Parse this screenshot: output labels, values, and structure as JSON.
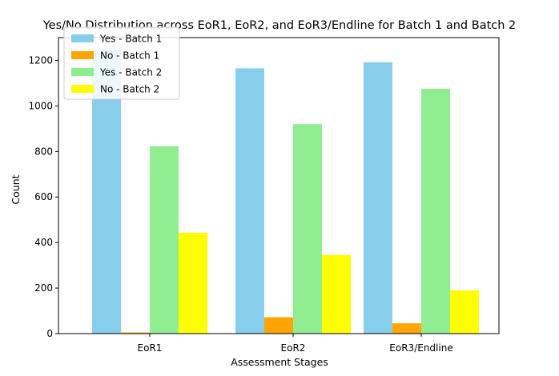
{
  "chart_data": {
    "type": "bar",
    "title": "Yes/No Distribution across EoR1, EoR2, and EoR3/Endline for Batch 1 and Batch 2",
    "xlabel": "Assessment Stages",
    "ylabel": "Count",
    "categories": [
      "EoR1",
      "EoR2",
      "EoR3/Endline"
    ],
    "series": [
      {
        "name": "Yes - Batch 1",
        "color": "#87CEEB",
        "values": [
          1245,
          1165,
          1192
        ]
      },
      {
        "name": "No - Batch 1",
        "color": "#FFA500",
        "values": [
          5,
          72,
          45
        ]
      },
      {
        "name": "Yes - Batch 2",
        "color": "#90EE90",
        "values": [
          823,
          920,
          1075
        ]
      },
      {
        "name": "No - Batch 2",
        "color": "#FFFF00",
        "values": [
          443,
          345,
          190
        ]
      }
    ],
    "ylim": [
      0,
      1300
    ],
    "yticks": [
      0,
      200,
      400,
      600,
      800,
      1000,
      1200
    ],
    "grid": false,
    "legend_position": "top-left"
  }
}
